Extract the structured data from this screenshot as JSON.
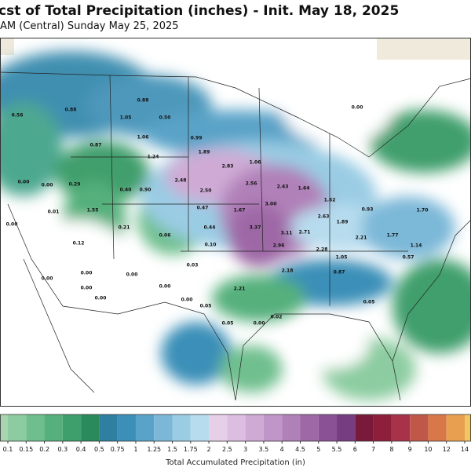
{
  "header": {
    "title": "cst of Total Precipitation (inches) - Init. May 18, 2025",
    "subtitle": "AM (Central) Sunday May 25, 2025"
  },
  "map": {
    "point_labels": [
      "0.56",
      "0.88",
      "0.88",
      "1.05",
      "0.50",
      "0.00",
      "0.99",
      "1.06",
      "0.87",
      "1.89",
      "1.24",
      "2.83",
      "1.06",
      "2.48",
      "2.50",
      "2.56",
      "2.43",
      "1.64",
      "0.00",
      "0.00",
      "0.29",
      "0.40",
      "0.90",
      "0.01",
      "0.00",
      "1.55",
      "0.47",
      "1.67",
      "3.00",
      "1.62",
      "2.63",
      "0.93",
      "1.70",
      "0.21",
      "0.06",
      "0.44",
      "3.37",
      "3.11",
      "2.71",
      "1.89",
      "2.21",
      "1.77",
      "1.14",
      "0.12",
      "0.10",
      "2.96",
      "2.28",
      "1.05",
      "0.57",
      "0.00",
      "0.00",
      "0.00",
      "0.03",
      "2.18",
      "0.87",
      "0.00",
      "0.00",
      "0.00",
      "2.21",
      "0.00",
      "0.05",
      "0.05",
      "0.02",
      "0.05",
      "0.00"
    ]
  },
  "legend": {
    "title": "Total Accumulated Precipitation (in)",
    "ticks": [
      0.1,
      0.15,
      0.2,
      0.3,
      0.4,
      0.5,
      0.75,
      1,
      1.25,
      1.5,
      1.75,
      2,
      2.5,
      3,
      3.5,
      4,
      4.5,
      5,
      5.5,
      6,
      7,
      8,
      9,
      10,
      12,
      14
    ],
    "colors": [
      "#a8d5b0",
      "#8ccca0",
      "#6fbf8e",
      "#55b07c",
      "#3f9f6c",
      "#2a8a5c",
      "#2f7fa0",
      "#3b8fb8",
      "#5aa3c8",
      "#7bb8d8",
      "#9acce4",
      "#b7dcee",
      "#e6d0e8",
      "#dcbfe0",
      "#cfaad5",
      "#c096c8",
      "#b080b8",
      "#9e68a6",
      "#8a5294",
      "#763d80",
      "#7a1a3a",
      "#8e1f3a",
      "#a8324a",
      "#c0584a",
      "#d8784a",
      "#e8a050",
      "#f2c660"
    ]
  }
}
